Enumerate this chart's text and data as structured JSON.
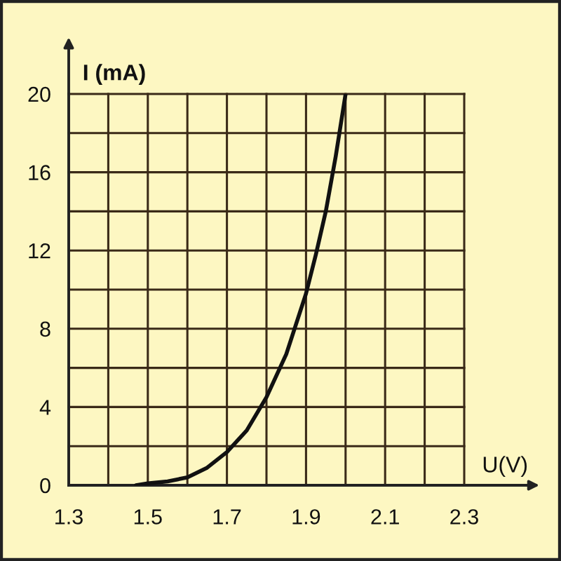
{
  "chart_data": {
    "type": "line",
    "xlabel": "U(V)",
    "ylabel": "I (mA)",
    "x": [
      1.47,
      1.5,
      1.55,
      1.6,
      1.65,
      1.7,
      1.75,
      1.8,
      1.85,
      1.9,
      1.925,
      1.95,
      1.975,
      2.0
    ],
    "series": [
      {
        "color": "#111111",
        "values": [
          0,
          0.1,
          0.2,
          0.4,
          0.9,
          1.7,
          2.8,
          4.5,
          6.7,
          9.8,
          11.8,
          14.0,
          16.8,
          20.0
        ]
      }
    ],
    "xlim": [
      1.3,
      2.3
    ],
    "xticks": [
      1.3,
      {
        "value": 1.4,
        "label": null
      },
      1.5,
      {
        "value": 1.6,
        "label": null
      },
      1.7,
      {
        "value": 1.8,
        "label": null
      },
      1.9,
      {
        "value": 2.0,
        "label": null
      },
      2.1,
      {
        "value": 2.2,
        "label": null
      },
      2.3
    ],
    "ylim": [
      0,
      20
    ],
    "yticks": [
      0,
      {
        "value": 2,
        "label": null
      },
      4,
      {
        "value": 6,
        "label": null
      },
      8,
      {
        "value": 10,
        "label": null
      },
      12,
      {
        "value": 14,
        "label": null
      },
      16,
      {
        "value": 18,
        "label": null
      },
      20
    ],
    "grid": true,
    "line_style": "solid"
  }
}
